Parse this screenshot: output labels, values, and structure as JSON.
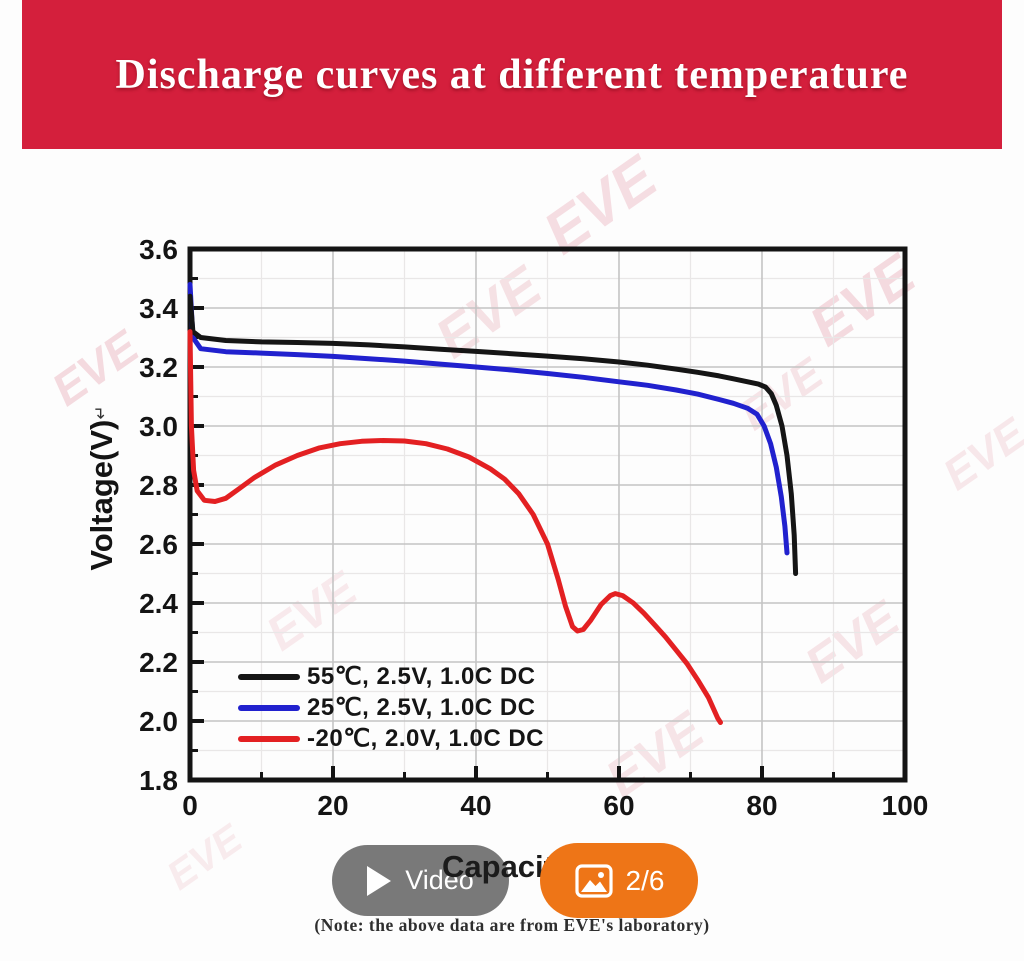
{
  "header": {
    "title": "Discharge curves at different temperature",
    "background_color": "#d41f3c",
    "text_color": "#ffffff"
  },
  "chart_data": {
    "type": "line",
    "xlabel": "Capacity",
    "ylabel": "Voltage(V)",
    "ylabel_suffix": "↵",
    "xlim": [
      0,
      100
    ],
    "ylim": [
      1.8,
      3.6
    ],
    "xticks": [
      "0",
      "20",
      "40",
      "60",
      "80",
      "100"
    ],
    "yticks": [
      "1.8",
      "2.0",
      "2.2",
      "2.4",
      "2.6",
      "2.8",
      "3.0",
      "3.2",
      "3.4",
      "3.6"
    ],
    "grid": "major every 0.2V / 20 units, faint minor every 0.1V / 10 units",
    "legend_position": "lower-left inside plot",
    "frame_color": "#141414",
    "grid_major_color": "#c4c4c4",
    "grid_minor_color": "#e9e7e7",
    "series": [
      {
        "name": "55℃, 2.5V, 1.0C DC",
        "color": "#151515",
        "points": [
          [
            0,
            3.44
          ],
          [
            0.4,
            3.32
          ],
          [
            1.5,
            3.3
          ],
          [
            5,
            3.29
          ],
          [
            10,
            3.285
          ],
          [
            15,
            3.283
          ],
          [
            20,
            3.28
          ],
          [
            25,
            3.275
          ],
          [
            30,
            3.268
          ],
          [
            35,
            3.26
          ],
          [
            40,
            3.253
          ],
          [
            45,
            3.245
          ],
          [
            50,
            3.237
          ],
          [
            55,
            3.228
          ],
          [
            60,
            3.217
          ],
          [
            64,
            3.206
          ],
          [
            68,
            3.193
          ],
          [
            71,
            3.182
          ],
          [
            74,
            3.17
          ],
          [
            76,
            3.16
          ],
          [
            78,
            3.15
          ],
          [
            79.5,
            3.142
          ],
          [
            80.5,
            3.132
          ],
          [
            81.3,
            3.11
          ],
          [
            82,
            3.07
          ],
          [
            82.8,
            3.0
          ],
          [
            83.5,
            2.9
          ],
          [
            84.1,
            2.77
          ],
          [
            84.5,
            2.63
          ],
          [
            84.7,
            2.5
          ]
        ]
      },
      {
        "name": "25℃, 2.5V, 1.0C DC",
        "color": "#2121ce",
        "points": [
          [
            0,
            3.48
          ],
          [
            0.4,
            3.3
          ],
          [
            1.5,
            3.262
          ],
          [
            5,
            3.252
          ],
          [
            10,
            3.247
          ],
          [
            15,
            3.242
          ],
          [
            20,
            3.236
          ],
          [
            25,
            3.228
          ],
          [
            30,
            3.22
          ],
          [
            35,
            3.21
          ],
          [
            40,
            3.2
          ],
          [
            45,
            3.19
          ],
          [
            50,
            3.178
          ],
          [
            55,
            3.165
          ],
          [
            60,
            3.15
          ],
          [
            64,
            3.138
          ],
          [
            68,
            3.122
          ],
          [
            71,
            3.108
          ],
          [
            74,
            3.09
          ],
          [
            76,
            3.077
          ],
          [
            78,
            3.06
          ],
          [
            79.3,
            3.04
          ],
          [
            80.3,
            3.0
          ],
          [
            81.2,
            2.94
          ],
          [
            82,
            2.86
          ],
          [
            82.7,
            2.76
          ],
          [
            83.2,
            2.66
          ],
          [
            83.5,
            2.57
          ]
        ]
      },
      {
        "name": "-20℃, 2.0V, 1.0C DC",
        "color": "#e32022",
        "points": [
          [
            0,
            3.32
          ],
          [
            0.2,
            3.0
          ],
          [
            0.5,
            2.85
          ],
          [
            1,
            2.78
          ],
          [
            2,
            2.748
          ],
          [
            3.5,
            2.744
          ],
          [
            5,
            2.755
          ],
          [
            7,
            2.79
          ],
          [
            9,
            2.825
          ],
          [
            12,
            2.868
          ],
          [
            15,
            2.9
          ],
          [
            18,
            2.925
          ],
          [
            21,
            2.94
          ],
          [
            24,
            2.948
          ],
          [
            27,
            2.951
          ],
          [
            30,
            2.949
          ],
          [
            33,
            2.94
          ],
          [
            36,
            2.922
          ],
          [
            39,
            2.895
          ],
          [
            42,
            2.855
          ],
          [
            44,
            2.82
          ],
          [
            46,
            2.77
          ],
          [
            48,
            2.7
          ],
          [
            50,
            2.6
          ],
          [
            51.5,
            2.48
          ],
          [
            52.5,
            2.39
          ],
          [
            53.5,
            2.32
          ],
          [
            54.2,
            2.305
          ],
          [
            55,
            2.31
          ],
          [
            56,
            2.34
          ],
          [
            57.5,
            2.395
          ],
          [
            58.8,
            2.425
          ],
          [
            59.5,
            2.432
          ],
          [
            60.5,
            2.425
          ],
          [
            62,
            2.4
          ],
          [
            63.5,
            2.365
          ],
          [
            65,
            2.325
          ],
          [
            66.5,
            2.285
          ],
          [
            68,
            2.24
          ],
          [
            69.5,
            2.195
          ],
          [
            71,
            2.14
          ],
          [
            72.5,
            2.08
          ],
          [
            73.8,
            2.01
          ],
          [
            74.2,
            1.995
          ]
        ]
      }
    ]
  },
  "overlay": {
    "video_label": "Video",
    "counter_label": "2/6",
    "badge_color": "#ee7517"
  },
  "footer": {
    "note": "(Note: the above data are from EVE's laboratory)"
  },
  "watermark": {
    "text": "EVE"
  }
}
